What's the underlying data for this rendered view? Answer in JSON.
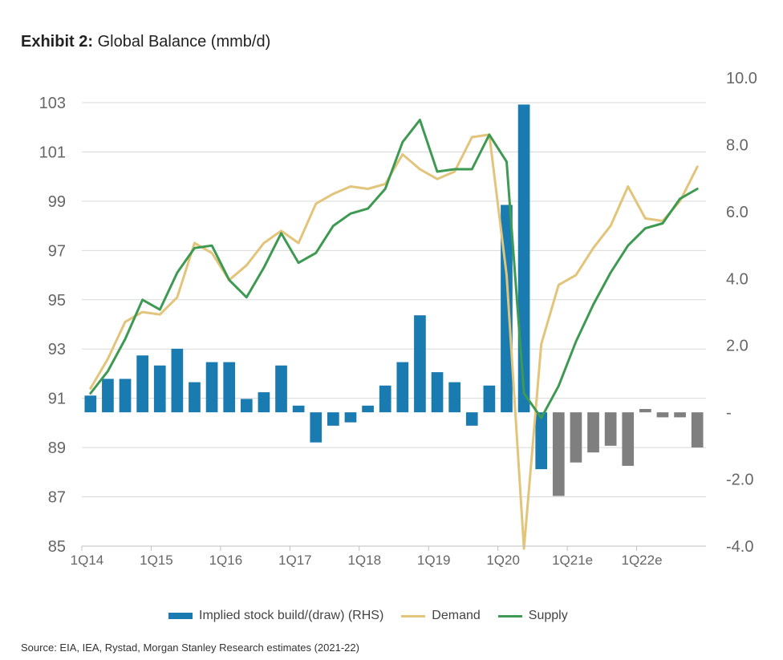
{
  "title": {
    "label": "Exhibit 2:",
    "text": "Global Balance (mmb/d)"
  },
  "colors": {
    "bar_actual": "#1a7bb0",
    "bar_estimate": "#7f7f7f",
    "demand": "#e2c47a",
    "supply": "#3e9a52",
    "grid": "#d9d9d9",
    "tick_text": "#666666"
  },
  "chart_data": {
    "type": "bar+line",
    "x_ticks": [
      "1Q14",
      "1Q15",
      "1Q16",
      "1Q17",
      "1Q18",
      "1Q19",
      "1Q20",
      "1Q21e",
      "1Q22e"
    ],
    "quarters": [
      "1Q14",
      "2Q14",
      "3Q14",
      "4Q14",
      "1Q15",
      "2Q15",
      "3Q15",
      "4Q15",
      "1Q16",
      "2Q16",
      "3Q16",
      "4Q16",
      "1Q17",
      "2Q17",
      "3Q17",
      "4Q17",
      "1Q18",
      "2Q18",
      "3Q18",
      "4Q18",
      "1Q19",
      "2Q19",
      "3Q19",
      "4Q19",
      "1Q20",
      "2Q20",
      "3Q20",
      "4Q20",
      "1Q21e",
      "2Q21e",
      "3Q21e",
      "4Q21e",
      "1Q22e",
      "2Q22e",
      "3Q22e",
      "4Q22e"
    ],
    "estimate_start_index": 27,
    "y_left": {
      "min": 85,
      "max": 103,
      "ticks": [
        85,
        87,
        89,
        91,
        93,
        95,
        97,
        99,
        101,
        103
      ]
    },
    "y_right": {
      "min": -4.0,
      "max": 10.0,
      "ticks": [
        "-4.0",
        "-2.0",
        "-",
        "2.0",
        "4.0",
        "6.0",
        "8.0",
        "10.0"
      ],
      "tick_values": [
        -4,
        -2,
        0,
        2,
        4,
        6,
        8,
        10
      ]
    },
    "series": [
      {
        "name": "Implied stock build/(draw) (RHS)",
        "kind": "bar",
        "axis": "right",
        "values": [
          0.5,
          1.0,
          1.0,
          1.7,
          1.4,
          1.9,
          0.9,
          1.5,
          1.5,
          0.4,
          0.6,
          1.4,
          0.2,
          -0.9,
          -0.4,
          -0.3,
          0.2,
          0.8,
          1.5,
          2.9,
          1.2,
          0.9,
          -0.4,
          0.8,
          6.2,
          9.2,
          -1.7,
          -2.5,
          -1.5,
          -1.2,
          -1.0,
          -1.6,
          0.1,
          -0.15,
          -0.15,
          -1.05
        ]
      },
      {
        "name": "Demand",
        "kind": "line",
        "axis": "left",
        "values": [
          91.4,
          92.6,
          94.1,
          94.5,
          94.4,
          95.1,
          97.3,
          96.9,
          95.8,
          96.4,
          97.3,
          97.8,
          97.3,
          98.9,
          99.3,
          99.6,
          99.5,
          99.7,
          100.9,
          100.3,
          99.9,
          100.2,
          101.6,
          101.7,
          96.0,
          84.9,
          93.2,
          95.6,
          96.0,
          97.1,
          98.0,
          99.6,
          98.3,
          98.2,
          99.0,
          100.4
        ]
      },
      {
        "name": "Supply",
        "kind": "line",
        "axis": "left",
        "values": [
          91.2,
          92.1,
          93.4,
          95.0,
          94.6,
          96.1,
          97.1,
          97.2,
          95.8,
          95.1,
          96.3,
          97.7,
          96.5,
          96.9,
          98.0,
          98.5,
          98.7,
          99.5,
          101.4,
          102.3,
          100.2,
          100.3,
          100.3,
          101.7,
          100.6,
          91.2,
          90.2,
          91.5,
          93.3,
          94.8,
          96.1,
          97.2,
          97.9,
          98.1,
          99.1,
          99.5
        ]
      }
    ],
    "legend": [
      {
        "label": "Implied stock build/(draw) (RHS)",
        "kind": "bar"
      },
      {
        "label": "Demand",
        "kind": "line"
      },
      {
        "label": "Supply",
        "kind": "line"
      }
    ],
    "legend_position": "bottom",
    "grid": true
  },
  "source": "Source: EIA, IEA, Rystad, Morgan Stanley Research estimates (2021-22)"
}
